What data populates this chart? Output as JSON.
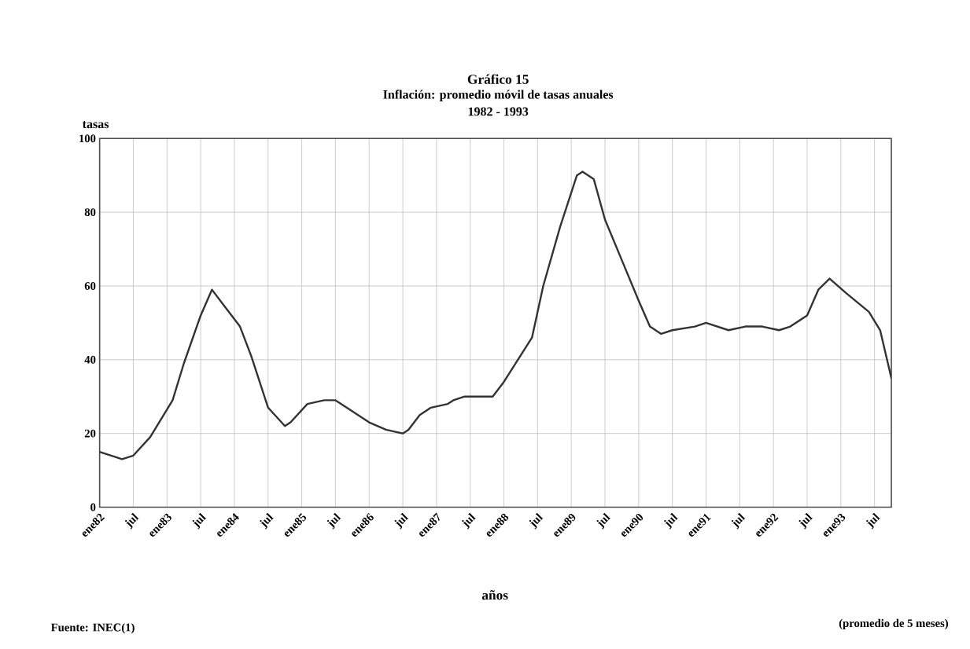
{
  "chart_data": {
    "type": "line",
    "title": "Gráfico 15",
    "subtitle": "Inflación: promedio móvil de tasas anuales",
    "xlabel": "años",
    "ylabel": "tasas",
    "annotations": [
      "1982 - 1993",
      "Fuente: INEC(1)",
      "(promedio de 5 meses)"
    ],
    "x": [
      "1982-01",
      "1982-05",
      "1982-07",
      "1982-10",
      "1983-02",
      "1983-04",
      "1983-07",
      "1983-09",
      "1983-11",
      "1984-02",
      "1984-04",
      "1984-07",
      "1984-10",
      "1984-11",
      "1985-02",
      "1985-05",
      "1985-07",
      "1985-09",
      "1986-01",
      "1986-04",
      "1986-07",
      "1986-08",
      "1986-10",
      "1986-12",
      "1987-03",
      "1987-04",
      "1987-06",
      "1987-09",
      "1987-11",
      "1988-01",
      "1988-06",
      "1988-08",
      "1988-11",
      "1989-02",
      "1989-03",
      "1989-05",
      "1989-07",
      "1989-10",
      "1990-01",
      "1990-03",
      "1990-05",
      "1990-07",
      "1990-11",
      "1991-01",
      "1991-05",
      "1991-08",
      "1991-11",
      "1992-02",
      "1992-04",
      "1992-07",
      "1992-09",
      "1992-11",
      "1993-02",
      "1993-06",
      "1993-08",
      "1993-10"
    ],
    "values": [
      15,
      13,
      14,
      19,
      29,
      39,
      52,
      59,
      55,
      49,
      41,
      27,
      22,
      23,
      28,
      29,
      29,
      27,
      23,
      21,
      20,
      21,
      25,
      27,
      28,
      29,
      30,
      30,
      30,
      34,
      46,
      60,
      76,
      90,
      91,
      89,
      78,
      67,
      56,
      49,
      47,
      48,
      49,
      50,
      48,
      49,
      49,
      48,
      49,
      52,
      59,
      62,
      58,
      53,
      48,
      35
    ],
    "color": "#333333",
    "line_style": "solid",
    "marker": "none",
    "grid": true,
    "xlim": [
      "1982-01",
      "1993-10"
    ],
    "xticks": [
      {
        "value": "1982-01",
        "label": "ene82"
      },
      {
        "value": "1982-07",
        "label": "jul"
      },
      {
        "value": "1983-01",
        "label": "ene83"
      },
      {
        "value": "1983-07",
        "label": "jul"
      },
      {
        "value": "1984-01",
        "label": "ene84"
      },
      {
        "value": "1984-07",
        "label": "jul"
      },
      {
        "value": "1985-01",
        "label": "ene85"
      },
      {
        "value": "1985-07",
        "label": "jul"
      },
      {
        "value": "1986-01",
        "label": "ene86"
      },
      {
        "value": "1986-07",
        "label": "jul"
      },
      {
        "value": "1987-01",
        "label": "ene87"
      },
      {
        "value": "1987-07",
        "label": "jul"
      },
      {
        "value": "1988-01",
        "label": "ene88"
      },
      {
        "value": "1988-07",
        "label": "jul"
      },
      {
        "value": "1989-01",
        "label": "ene89"
      },
      {
        "value": "1989-07",
        "label": "jul"
      },
      {
        "value": "1990-01",
        "label": "ene90"
      },
      {
        "value": "1990-07",
        "label": "jul"
      },
      {
        "value": "1991-01",
        "label": "ene91"
      },
      {
        "value": "1991-07",
        "label": "jul"
      },
      {
        "value": "1992-01",
        "label": "ene92"
      },
      {
        "value": "1992-07",
        "label": "jul"
      },
      {
        "value": "1993-01",
        "label": "ene93"
      },
      {
        "value": "1993-07",
        "label": "jul"
      }
    ],
    "ylim": [
      0,
      100
    ],
    "yticks": [
      0,
      20,
      40,
      60,
      80,
      100
    ]
  }
}
